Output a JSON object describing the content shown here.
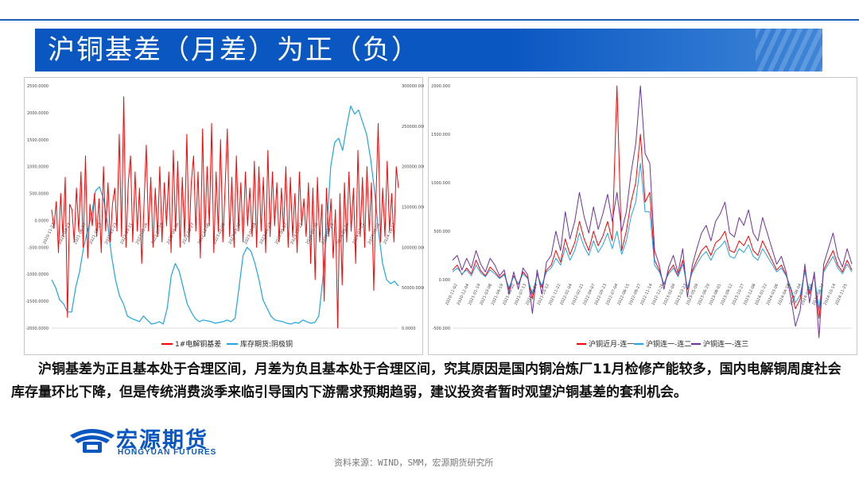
{
  "header": {
    "title": "沪铜基差（月差）为正（负）"
  },
  "body_text": "沪铜基差为正且基本处于合理区间，月差为负且基本处于合理区间，究其原因是国内铜冶炼厂11月检修产能较多，国内电解铜周度社会库存量环比下降，但是传统消费淡季来临引导国内下游需求预期趋弱，建议投资者暂时观望沪铜基差的套利机会。",
  "logo": {
    "name": "宏源期货",
    "english": "HONGYUAN FUTURES"
  },
  "source": "资料来源：WIND，SMM，宏源期货研究所",
  "colors": {
    "banner": "#0a57c2",
    "series_red": "#ff0000",
    "series_blue": "#1fa5e6",
    "series_purple": "#7030a0"
  },
  "chart_data": [
    {
      "type": "line",
      "y_left_ticks": [
        "2500.0000",
        "2000.0000",
        "1500.0000",
        "1000.0000",
        "500.0000",
        "0.0000",
        "-500.0000",
        "-1000.0000",
        "-1500.0000",
        "-2000.0000"
      ],
      "y_right_ticks": [
        "300000.0000",
        "250000.0000",
        "200000.0000",
        "150000.0000",
        "100000.0000",
        "50000.0000",
        "0.0000"
      ],
      "ylim_left": [
        -2000,
        2500
      ],
      "ylim_right": [
        0,
        300000
      ],
      "legend": [
        "1#电解铜基差",
        "库存期货:阴极铜"
      ],
      "legend_position": "bottom",
      "series": [
        {
          "name": "1#电解铜基差",
          "axis": "left",
          "color": "#ff0000",
          "values": [
            200,
            -150,
            350,
            -600,
            500,
            -300,
            800,
            -1800,
            300,
            200,
            -400,
            600,
            -200,
            900,
            -500,
            1200,
            -700,
            300,
            -100,
            500,
            -300,
            400,
            -600,
            1000,
            -200,
            700,
            -400,
            300,
            600,
            -200,
            1600,
            -300,
            2300,
            -500,
            700,
            1200,
            -400,
            900,
            -200,
            600,
            -800,
            300,
            1400,
            -200,
            800,
            -500,
            600,
            -300,
            1000,
            -400,
            700,
            -100,
            900,
            -600,
            1300,
            -200,
            1100,
            -500,
            800,
            -300,
            1600,
            -400,
            700,
            1200,
            -200,
            900,
            -700,
            1700,
            -300,
            1000,
            -100,
            1800,
            -600,
            900,
            -200,
            1500,
            -400,
            600,
            1700,
            -300,
            800,
            -500,
            1200,
            -200,
            700,
            -400,
            900,
            -100,
            600,
            -300,
            1100,
            -500,
            1000,
            -200,
            800,
            -600,
            1300,
            -300,
            900,
            -100,
            700,
            -400,
            600,
            -200,
            1000,
            -500,
            800,
            -300,
            500,
            -600,
            900,
            -100,
            400,
            -300,
            700,
            -800,
            600,
            -1100,
            800,
            -400,
            300,
            -1500,
            600,
            -300,
            400,
            -700,
            200,
            -2000,
            500,
            -1200,
            700,
            -400,
            900,
            -200,
            600,
            -800,
            1300,
            -300,
            800,
            -500,
            1000,
            -200,
            700,
            -1300,
            400,
            1800,
            -400,
            600,
            -300,
            1100,
            -200,
            500,
            -400,
            1000,
            600
          ],
          "sparkline_note": ""
        },
        {
          "name": "库存期货:阴极铜",
          "axis": "right",
          "color": "#1fa5e6",
          "values": [
            60000,
            50000,
            35000,
            30000,
            20000,
            20000,
            50000,
            70000,
            100000,
            120000,
            140000,
            170000,
            175000,
            160000,
            130000,
            90000,
            60000,
            40000,
            30000,
            15000,
            12000,
            10000,
            8000,
            15000,
            10000,
            5000,
            6000,
            8000,
            5000,
            25000,
            65000,
            80000,
            70000,
            50000,
            30000,
            20000,
            12000,
            8000,
            10000,
            9000,
            8000,
            6000,
            7000,
            8000,
            10000,
            8000,
            12000,
            50000,
            90000,
            100000,
            95000,
            80000,
            60000,
            35000,
            25000,
            15000,
            10000,
            9000,
            8000,
            6000,
            5000,
            7000,
            6000,
            10000,
            8000,
            6000,
            7000,
            15000,
            60000,
            120000,
            200000,
            230000,
            235000,
            220000,
            250000,
            275000,
            265000,
            270000,
            255000,
            240000,
            210000,
            170000,
            120000,
            80000,
            60000,
            55000,
            58000,
            52000
          ]
        }
      ],
      "x_tick_labels": [
        "2020-11-27",
        "2021-03-23",
        "2021-06-23",
        "2021-10-13",
        "2021-12-23",
        "2022-03-11",
        "2022-05-26",
        "2022-07-19",
        "2022-09-06",
        "2022-10-27",
        "2022-12-06",
        "2023-02-09",
        "2023-03-22",
        "2023-05-04",
        "2023-06-27",
        "2023-09-07",
        "2023-11-21",
        "2024-01-30",
        "2024-03-25",
        "2024-05-16",
        "2024-07-11",
        "2024-09-02",
        "2024-10-17"
      ]
    },
    {
      "type": "line",
      "y_ticks": [
        "2000.000",
        "1500.000",
        "1000.000",
        "500.000",
        "0.000",
        "-500.000"
      ],
      "ylim": [
        -500,
        2000
      ],
      "legend": [
        "沪铜近月-连一",
        "沪铜连一-连二",
        "沪铜连一-连三"
      ],
      "legend_position": "bottom",
      "series": [
        {
          "name": "沪铜近月-连一",
          "color": "#ff0000",
          "values": [
            100,
            150,
            50,
            120,
            60,
            200,
            90,
            40,
            130,
            80,
            20,
            60,
            -100,
            40,
            -50,
            80,
            20,
            -200,
            60,
            -80,
            100,
            150,
            300,
            180,
            420,
            260,
            380,
            600,
            420,
            300,
            500,
            350,
            450,
            600,
            400,
            2000,
            300,
            500,
            800,
            1000,
            1500,
            800,
            900,
            200,
            100,
            -50,
            80,
            150,
            40,
            200,
            -100,
            90,
            200,
            300,
            350,
            250,
            380,
            420,
            500,
            300,
            280,
            400,
            350,
            450,
            300,
            250,
            400,
            300,
            200,
            100,
            150,
            50,
            -100,
            -300,
            -200,
            100,
            -150,
            50,
            -400,
            100,
            200,
            300,
            150,
            80,
            200,
            100
          ]
        },
        {
          "name": "沪铜连一-连二",
          "color": "#1fa5e6",
          "values": [
            80,
            120,
            60,
            100,
            40,
            150,
            70,
            30,
            100,
            60,
            10,
            50,
            -80,
            30,
            -40,
            60,
            10,
            -150,
            50,
            -60,
            80,
            120,
            220,
            150,
            330,
            200,
            300,
            480,
            340,
            250,
            400,
            280,
            360,
            480,
            320,
            500,
            260,
            400,
            650,
            800,
            1200,
            700,
            700,
            150,
            80,
            -40,
            60,
            120,
            30,
            160,
            -80,
            70,
            160,
            240,
            290,
            200,
            300,
            340,
            400,
            240,
            220,
            320,
            280,
            360,
            240,
            200,
            320,
            240,
            160,
            80,
            120,
            40,
            -80,
            -240,
            -160,
            80,
            -120,
            40,
            -300,
            80,
            160,
            240,
            120,
            60,
            160,
            80
          ]
        },
        {
          "name": "沪铜连一-连三",
          "color": "#7030a0",
          "values": [
            200,
            250,
            100,
            220,
            120,
            300,
            160,
            80,
            220,
            150,
            40,
            100,
            -150,
            80,
            -100,
            120,
            50,
            -350,
            100,
            -150,
            180,
            250,
            500,
            300,
            700,
            420,
            600,
            900,
            650,
            480,
            750,
            520,
            680,
            880,
            600,
            900,
            500,
            700,
            1100,
            1400,
            2000,
            1300,
            1200,
            300,
            150,
            -100,
            130,
            250,
            70,
            320,
            -180,
            140,
            320,
            480,
            560,
            400,
            600,
            680,
            800,
            480,
            440,
            640,
            560,
            720,
            480,
            400,
            640,
            480,
            320,
            160,
            240,
            80,
            -180,
            -480,
            -320,
            160,
            -240,
            80,
            -600,
            160,
            320,
            480,
            240,
            130,
            320,
            160
          ]
        }
      ],
      "x_tick_labels": [
        "2020-11-02",
        "2020-12-04",
        "2021-01-19",
        "2021-03-08",
        "2021-04-19",
        "2021-06-02",
        "2021-07-13",
        "2021-08-24",
        "2021-10-12",
        "2021-11-22",
        "2022-01-04",
        "2022-02-21",
        "2022-04-07",
        "2022-05-23",
        "2022-07-04",
        "2022-08-15",
        "2022-09-27",
        "2022-11-14",
        "2022-12-26",
        "2023-02-09",
        "2023-03-23",
        "2023-05-09",
        "2023-06-20",
        "2023-08-01",
        "2023-09-12",
        "2023-10-27",
        "2023-12-08",
        "2024-01-22",
        "2024-03-06",
        "2024-04-18",
        "2024-06-04",
        "2024-07-16",
        "2024-08-27",
        "2024-10-14",
        "2024-11-25"
      ]
    }
  ]
}
